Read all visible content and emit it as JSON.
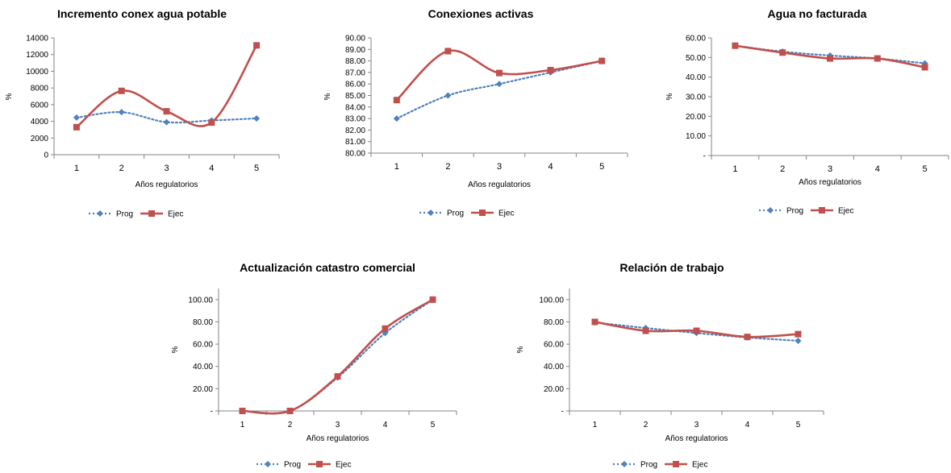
{
  "colors": {
    "prog": "#4f81bd",
    "ejec": "#c0504d",
    "axis": "#868686"
  },
  "chart_data": [
    {
      "id": "c1",
      "type": "line",
      "title": "Incremento conex agua potable",
      "xlabel": "Años regulatorios",
      "ylabel": "%",
      "categories": [
        "1",
        "2",
        "3",
        "4",
        "5"
      ],
      "ylim": [
        0,
        14000
      ],
      "yticks": [
        "0",
        "2000",
        "4000",
        "6000",
        "8000",
        "10000",
        "12000",
        "14000"
      ],
      "series": [
        {
          "name": "Prog",
          "values": [
            4450,
            5100,
            3900,
            4100,
            4350
          ]
        },
        {
          "name": "Ejec",
          "values": [
            3300,
            7650,
            5200,
            3850,
            13100
          ]
        }
      ],
      "grid": false,
      "legend": "bottom"
    },
    {
      "id": "c2",
      "type": "line",
      "title": "Conexiones activas",
      "xlabel": "Años regulatorios",
      "ylabel": "%",
      "categories": [
        "1",
        "2",
        "3",
        "4",
        "5"
      ],
      "ylim": [
        80,
        90
      ],
      "yticks": [
        "80.00",
        "81.00",
        "82.00",
        "83.00",
        "84.00",
        "85.00",
        "86.00",
        "87.00",
        "88.00",
        "89.00",
        "90.00"
      ],
      "series": [
        {
          "name": "Prog",
          "values": [
            83.0,
            85.0,
            86.0,
            87.0,
            88.0
          ]
        },
        {
          "name": "Ejec",
          "values": [
            84.6,
            88.85,
            86.95,
            87.2,
            88.0
          ]
        }
      ],
      "grid": false,
      "legend": "bottom"
    },
    {
      "id": "c3",
      "type": "line",
      "title": "Agua no facturada",
      "xlabel": "Años regulatorios",
      "ylabel": "%",
      "categories": [
        "1",
        "2",
        "3",
        "4",
        "5"
      ],
      "ylim": [
        0,
        60
      ],
      "yticks": [
        "-",
        "10.00",
        "20.00",
        "30.00",
        "40.00",
        "50.00",
        "60.00"
      ],
      "series": [
        {
          "name": "Prog",
          "values": [
            56.0,
            53.0,
            51.0,
            49.5,
            47.0
          ]
        },
        {
          "name": "Ejec",
          "values": [
            56.0,
            52.5,
            49.5,
            49.5,
            45.0
          ]
        }
      ],
      "grid": false,
      "legend": "bottom"
    },
    {
      "id": "c4",
      "type": "line",
      "title": "Actualización catastro comercial",
      "xlabel": "Años regulatorios",
      "ylabel": "%",
      "categories": [
        "1",
        "2",
        "3",
        "4",
        "5"
      ],
      "ylim": [
        0,
        110
      ],
      "yticks": [
        "-",
        "20.00",
        "40.00",
        "60.00",
        "80.00",
        "100.00"
      ],
      "series": [
        {
          "name": "Prog",
          "values": [
            0,
            0,
            30,
            70,
            100
          ]
        },
        {
          "name": "Ejec",
          "values": [
            0,
            0,
            31,
            74,
            100
          ]
        }
      ],
      "grid": false,
      "legend": "bottom"
    },
    {
      "id": "c5",
      "type": "line",
      "title": "Relación de trabajo",
      "xlabel": "Años regulatorios",
      "ylabel": "%",
      "categories": [
        "1",
        "2",
        "3",
        "4",
        "5"
      ],
      "ylim": [
        0,
        110
      ],
      "yticks": [
        "-",
        "20.00",
        "40.00",
        "60.00",
        "80.00",
        "100.00"
      ],
      "series": [
        {
          "name": "Prog",
          "values": [
            79.5,
            74.5,
            70.0,
            66.0,
            63.0
          ]
        },
        {
          "name": "Ejec",
          "values": [
            80.0,
            72.0,
            72.0,
            66.5,
            69.0
          ]
        }
      ],
      "grid": false,
      "legend": "bottom"
    }
  ]
}
